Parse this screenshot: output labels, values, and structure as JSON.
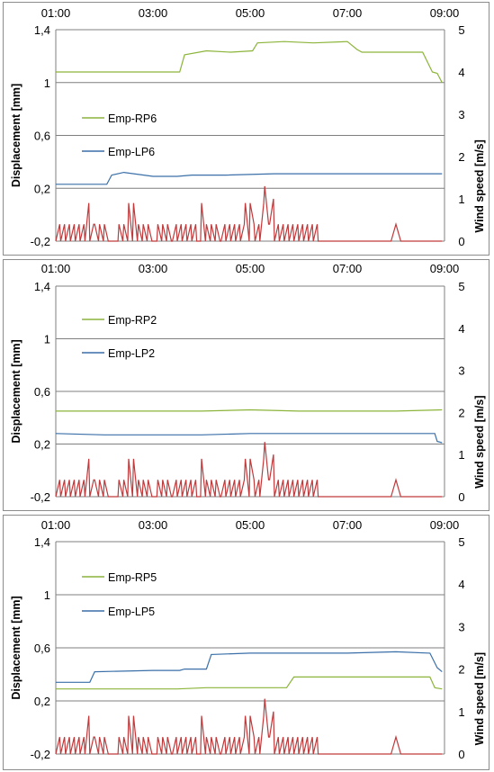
{
  "colors": {
    "rp": "#8cb43a",
    "lp": "#3a6fa8",
    "wind": "#c0393b",
    "grid": "#7f7f7f"
  },
  "axes": {
    "x_ticks": [
      "01:00",
      "03:00",
      "05:00",
      "07:00",
      "09:00"
    ],
    "left_label": "Displacement [mm]",
    "right_label": "Wind speed [m/s]",
    "left_ticks": [
      "1,4",
      "1",
      "0,6",
      "0,2",
      "-0,2"
    ],
    "right_ticks": [
      "5",
      "4",
      "3",
      "2",
      "1",
      "0"
    ],
    "left_range": [
      -0.2,
      1.4
    ],
    "right_range": [
      0,
      5
    ],
    "x_range_hours": [
      1,
      9
    ]
  },
  "chart_data": [
    {
      "type": "line",
      "legend_position": "center-left",
      "series": [
        {
          "name": "Emp-RP6",
          "color": "#8cb43a",
          "axis": "left",
          "x": [
            1.0,
            3.55,
            3.65,
            4.1,
            4.6,
            5.05,
            5.15,
            5.7,
            6.3,
            7.0,
            7.2,
            7.3,
            8.0,
            8.3,
            8.55,
            8.75,
            8.85,
            8.95
          ],
          "y": [
            1.08,
            1.08,
            1.21,
            1.24,
            1.23,
            1.24,
            1.3,
            1.31,
            1.3,
            1.31,
            1.25,
            1.23,
            1.23,
            1.23,
            1.23,
            1.08,
            1.07,
            1.0
          ]
        },
        {
          "name": "Emp-LP6",
          "color": "#3a6fa8",
          "axis": "left",
          "x": [
            1.0,
            2.05,
            2.15,
            2.4,
            3.0,
            3.5,
            3.8,
            4.5,
            5.5,
            6.3,
            7.5,
            8.3,
            8.95
          ],
          "y": [
            0.23,
            0.23,
            0.3,
            0.32,
            0.29,
            0.29,
            0.3,
            0.3,
            0.31,
            0.31,
            0.31,
            0.31,
            0.31
          ]
        },
        {
          "name": "",
          "color": "#c0393b",
          "axis": "right",
          "x": [
            1.0,
            1.08,
            1.1,
            1.18,
            1.2,
            1.28,
            1.3,
            1.38,
            1.4,
            1.48,
            1.5,
            1.58,
            1.6,
            1.68,
            1.7,
            1.78,
            1.8,
            1.88,
            1.9,
            1.98,
            2.0,
            2.08,
            2.1,
            2.18,
            2.2,
            2.28,
            2.3,
            2.38,
            2.4,
            2.48,
            2.5,
            2.58,
            2.6,
            2.68,
            2.7,
            2.78,
            2.8,
            2.88,
            2.9,
            2.98,
            3.0,
            3.08,
            3.1,
            3.18,
            3.2,
            3.28,
            3.3,
            3.38,
            3.4,
            3.48,
            3.5,
            3.58,
            3.6,
            3.68,
            3.7,
            3.78,
            3.8,
            3.88,
            3.9,
            3.98,
            4.0,
            4.08,
            4.1,
            4.18,
            4.2,
            4.28,
            4.3,
            4.38,
            4.4,
            4.48,
            4.5,
            4.58,
            4.6,
            4.68,
            4.7,
            4.78,
            4.8,
            4.88,
            4.9,
            4.98,
            5.0,
            5.08,
            5.1,
            5.18,
            5.2,
            5.28,
            5.3,
            5.38,
            5.4,
            5.48,
            5.5,
            5.58,
            5.6,
            5.68,
            5.7,
            5.78,
            5.8,
            5.88,
            5.9,
            5.98,
            6.0,
            6.08,
            6.1,
            6.18,
            6.2,
            6.28,
            6.3,
            6.38,
            6.4,
            7.9,
            8.0,
            8.1,
            8.95
          ],
          "y": [
            0,
            0.4,
            0,
            0.4,
            0,
            0.4,
            0,
            0.4,
            0,
            0.4,
            0,
            0.4,
            0,
            0.9,
            0,
            0.4,
            0.4,
            0,
            0.4,
            0,
            0.4,
            0,
            0,
            0,
            0,
            0,
            0.4,
            0,
            0.4,
            0,
            0.9,
            0,
            0.9,
            0,
            0.4,
            0,
            0.4,
            0,
            0.4,
            0,
            0,
            0,
            0.4,
            0,
            0.4,
            0,
            0.4,
            0,
            0,
            0.4,
            0,
            0.4,
            0,
            0.4,
            0,
            0.4,
            0,
            0.4,
            0,
            0,
            0.9,
            0,
            0.4,
            0,
            0.4,
            0,
            0.4,
            0,
            0,
            0.4,
            0,
            0.4,
            0,
            0.4,
            0,
            0.4,
            0,
            0.4,
            0.9,
            0,
            0.9,
            0.4,
            0,
            0.4,
            0,
            0.9,
            1.3,
            0.4,
            0.4,
            1.0,
            0,
            0.4,
            0,
            0.4,
            0,
            0.4,
            0,
            0.4,
            0,
            0.4,
            0,
            0.4,
            0,
            0.4,
            0,
            0.4,
            0,
            0.4,
            0,
            0,
            0.4,
            0,
            0
          ]
        }
      ]
    },
    {
      "type": "line",
      "legend_position": "center-left",
      "series": [
        {
          "name": "Emp-RP2",
          "color": "#8cb43a",
          "axis": "left",
          "x": [
            1.0,
            2.0,
            3.0,
            4.0,
            5.0,
            6.0,
            7.0,
            8.0,
            8.95
          ],
          "y": [
            0.45,
            0.45,
            0.45,
            0.45,
            0.46,
            0.45,
            0.45,
            0.45,
            0.46
          ]
        },
        {
          "name": "Emp-LP2",
          "color": "#3a6fa8",
          "axis": "left",
          "x": [
            1.0,
            2.0,
            3.0,
            4.0,
            5.0,
            6.0,
            7.0,
            8.0,
            8.8,
            8.85,
            8.95
          ],
          "y": [
            0.28,
            0.27,
            0.27,
            0.27,
            0.28,
            0.28,
            0.28,
            0.28,
            0.28,
            0.22,
            0.21
          ]
        },
        {
          "name": "",
          "color": "#c0393b",
          "axis": "right",
          "x": [
            1.0,
            1.08,
            1.1,
            1.18,
            1.2,
            1.28,
            1.3,
            1.38,
            1.4,
            1.48,
            1.5,
            1.58,
            1.6,
            1.68,
            1.7,
            1.78,
            1.8,
            1.88,
            1.9,
            1.98,
            2.0,
            2.08,
            2.1,
            2.18,
            2.2,
            2.28,
            2.3,
            2.38,
            2.4,
            2.48,
            2.5,
            2.58,
            2.6,
            2.68,
            2.7,
            2.78,
            2.8,
            2.88,
            2.9,
            2.98,
            3.0,
            3.08,
            3.1,
            3.18,
            3.2,
            3.28,
            3.3,
            3.38,
            3.4,
            3.48,
            3.5,
            3.58,
            3.6,
            3.68,
            3.7,
            3.78,
            3.8,
            3.88,
            3.9,
            3.98,
            4.0,
            4.08,
            4.1,
            4.18,
            4.2,
            4.28,
            4.3,
            4.38,
            4.4,
            4.48,
            4.5,
            4.58,
            4.6,
            4.68,
            4.7,
            4.78,
            4.8,
            4.88,
            4.9,
            4.98,
            5.0,
            5.08,
            5.1,
            5.18,
            5.2,
            5.28,
            5.3,
            5.38,
            5.4,
            5.48,
            5.5,
            5.58,
            5.6,
            5.68,
            5.7,
            5.78,
            5.8,
            5.88,
            5.9,
            5.98,
            6.0,
            6.08,
            6.1,
            6.18,
            6.2,
            6.28,
            6.3,
            6.38,
            6.4,
            7.9,
            8.0,
            8.1,
            8.95
          ],
          "y": [
            0,
            0.4,
            0,
            0.4,
            0,
            0.4,
            0,
            0.4,
            0,
            0.4,
            0,
            0.4,
            0,
            0.9,
            0,
            0.4,
            0.4,
            0,
            0.4,
            0,
            0.4,
            0,
            0,
            0,
            0,
            0,
            0.4,
            0,
            0.4,
            0,
            0.9,
            0,
            0.9,
            0,
            0.4,
            0,
            0.4,
            0,
            0.4,
            0,
            0,
            0,
            0.4,
            0,
            0.4,
            0,
            0.4,
            0,
            0,
            0.4,
            0,
            0.4,
            0,
            0.4,
            0,
            0.4,
            0,
            0.4,
            0,
            0,
            0.9,
            0,
            0.4,
            0,
            0.4,
            0,
            0.4,
            0,
            0,
            0.4,
            0,
            0.4,
            0,
            0.4,
            0,
            0.4,
            0,
            0.4,
            0.9,
            0,
            0.9,
            0.4,
            0,
            0.4,
            0,
            0.9,
            1.3,
            0.4,
            0.4,
            1.0,
            0,
            0.4,
            0,
            0.4,
            0,
            0.4,
            0,
            0.4,
            0,
            0.4,
            0,
            0.4,
            0,
            0.4,
            0,
            0.4,
            0,
            0.4,
            0,
            0,
            0.4,
            0,
            0
          ]
        }
      ]
    },
    {
      "type": "line",
      "legend_position": "center-left",
      "series": [
        {
          "name": "Emp-RP5",
          "color": "#8cb43a",
          "axis": "left",
          "x": [
            1.0,
            2.0,
            3.0,
            3.5,
            4.1,
            5.5,
            5.75,
            5.9,
            7.0,
            8.0,
            8.7,
            8.8,
            8.95
          ],
          "y": [
            0.29,
            0.29,
            0.29,
            0.29,
            0.3,
            0.3,
            0.3,
            0.38,
            0.38,
            0.38,
            0.38,
            0.3,
            0.29
          ]
        },
        {
          "name": "Emp-LP5",
          "color": "#3a6fa8",
          "axis": "left",
          "x": [
            1.0,
            1.7,
            1.8,
            3.0,
            3.55,
            3.65,
            4.1,
            4.2,
            5.0,
            6.0,
            7.0,
            8.0,
            8.7,
            8.85,
            8.95
          ],
          "y": [
            0.34,
            0.34,
            0.42,
            0.43,
            0.43,
            0.44,
            0.44,
            0.55,
            0.56,
            0.56,
            0.56,
            0.57,
            0.56,
            0.45,
            0.42
          ]
        },
        {
          "name": "",
          "color": "#c0393b",
          "axis": "right",
          "x": [
            1.0,
            1.08,
            1.1,
            1.18,
            1.2,
            1.28,
            1.3,
            1.38,
            1.4,
            1.48,
            1.5,
            1.58,
            1.6,
            1.68,
            1.7,
            1.78,
            1.8,
            1.88,
            1.9,
            1.98,
            2.0,
            2.08,
            2.1,
            2.18,
            2.2,
            2.28,
            2.3,
            2.38,
            2.4,
            2.48,
            2.5,
            2.58,
            2.6,
            2.68,
            2.7,
            2.78,
            2.8,
            2.88,
            2.9,
            2.98,
            3.0,
            3.08,
            3.1,
            3.18,
            3.2,
            3.28,
            3.3,
            3.38,
            3.4,
            3.48,
            3.5,
            3.58,
            3.6,
            3.68,
            3.7,
            3.78,
            3.8,
            3.88,
            3.9,
            3.98,
            4.0,
            4.08,
            4.1,
            4.18,
            4.2,
            4.28,
            4.3,
            4.38,
            4.4,
            4.48,
            4.5,
            4.58,
            4.6,
            4.68,
            4.7,
            4.78,
            4.8,
            4.88,
            4.9,
            4.98,
            5.0,
            5.08,
            5.1,
            5.18,
            5.2,
            5.28,
            5.3,
            5.38,
            5.4,
            5.48,
            5.5,
            5.58,
            5.6,
            5.68,
            5.7,
            5.78,
            5.8,
            5.88,
            5.9,
            5.98,
            6.0,
            6.08,
            6.1,
            6.18,
            6.2,
            6.28,
            6.3,
            6.38,
            6.4,
            7.9,
            8.0,
            8.1,
            8.95
          ],
          "y": [
            0,
            0.4,
            0,
            0.4,
            0,
            0.4,
            0,
            0.4,
            0,
            0.4,
            0,
            0.4,
            0,
            0.9,
            0,
            0.4,
            0.4,
            0,
            0.4,
            0,
            0.4,
            0,
            0,
            0,
            0,
            0,
            0.4,
            0,
            0.4,
            0,
            0.9,
            0,
            0.9,
            0,
            0.4,
            0,
            0.4,
            0,
            0.4,
            0,
            0,
            0,
            0.4,
            0,
            0.4,
            0,
            0.4,
            0,
            0,
            0.4,
            0,
            0.4,
            0,
            0.4,
            0,
            0.4,
            0,
            0.4,
            0,
            0,
            0.9,
            0,
            0.4,
            0,
            0.4,
            0,
            0.4,
            0,
            0,
            0.4,
            0,
            0.4,
            0,
            0.4,
            0,
            0.4,
            0,
            0.4,
            0.9,
            0,
            0.9,
            0.4,
            0,
            0.4,
            0,
            0.9,
            1.3,
            0.4,
            0.4,
            1.0,
            0,
            0.4,
            0,
            0.4,
            0,
            0.4,
            0,
            0.4,
            0,
            0.4,
            0,
            0.4,
            0,
            0.4,
            0,
            0.4,
            0,
            0.4,
            0,
            0,
            0.4,
            0,
            0
          ]
        }
      ]
    }
  ]
}
